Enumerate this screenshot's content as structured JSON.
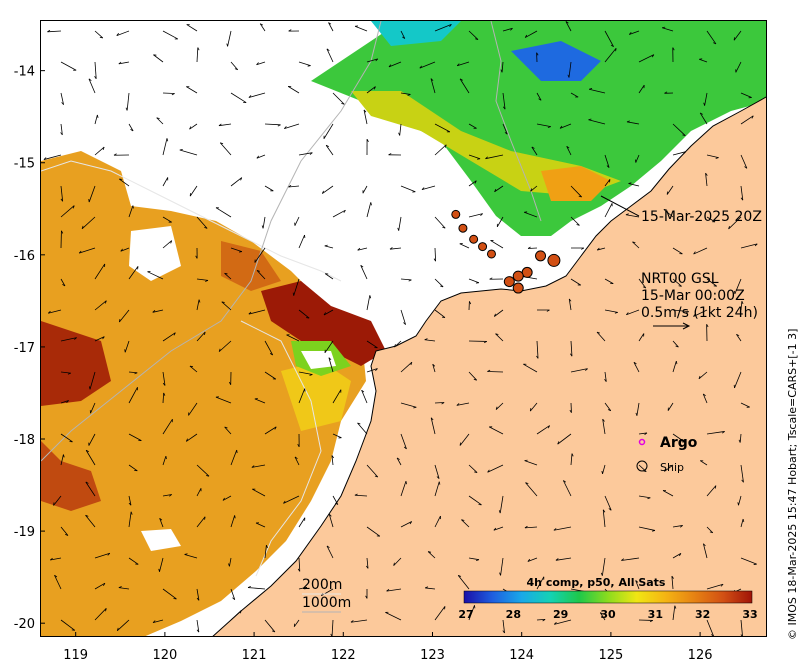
{
  "map": {
    "x_ticks": [
      "119",
      "120",
      "121",
      "122",
      "123",
      "124",
      "125",
      "126"
    ],
    "y_ticks": [
      "-14",
      "-15",
      "-16",
      "-17",
      "-18",
      "-19",
      "-20"
    ],
    "lon_range": [
      118.6,
      126.75
    ],
    "lat_range": [
      -20.15,
      -13.45
    ],
    "ship_track_label": "15-Mar-2025 20Z",
    "current_info": {
      "line1": "NRT00 GSL",
      "line2": "15-Mar 00:00Z",
      "line3": "0.5m/s (1kt 24h)"
    },
    "legend": {
      "argo_label": "Argo",
      "ship_label": "Ship"
    },
    "depth_labels": {
      "shallow": "200m",
      "deep": "1000m"
    },
    "colorbar": {
      "title": "4h comp, p50, All Sats",
      "ticks": [
        "27",
        "28",
        "29",
        "30",
        "31",
        "32",
        "33"
      ],
      "colors": [
        "#1a0fa8",
        "#1e5fe0",
        "#1aa8e8",
        "#14d2b4",
        "#1ec84a",
        "#8cdc1e",
        "#f0e614",
        "#f5b414",
        "#e68214",
        "#d25014",
        "#a01408"
      ]
    },
    "colors": {
      "land": "#fcc99b",
      "cloud": "#ffffff",
      "argo": "#e000e0",
      "ship": "#000000"
    }
  },
  "credit": "© IMOS 18-Mar-2025 15:47 Hobart; Tscale=CARS+[-1 3]"
}
